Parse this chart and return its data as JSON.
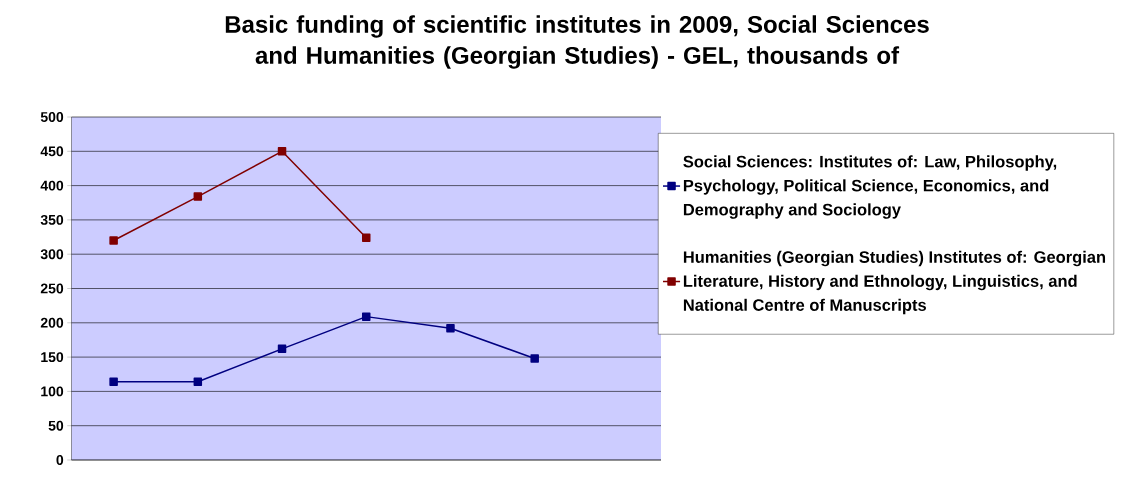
{
  "chart_data": {
    "type": "line",
    "title": "Basic funding of scientific institutes in 2009, Social Sciences and Humanities (Georgian Studies) - GEL, thousands of",
    "categories": [
      null,
      null,
      null,
      null,
      null,
      null,
      null
    ],
    "series": [
      {
        "name": "Social Sciences: Institutes of: Law, Philosophy, Psychology, Political Science, Economics, and Demography and Sociology",
        "color": "#000080",
        "values": [
          114,
          114,
          162,
          209,
          192,
          148,
          null
        ]
      },
      {
        "name": "Humanities (Georgian Studies) Institutes of: Georgian Literature, History and Ethnology, Linguistics, and National Centre of Manuscripts",
        "color": "#800000",
        "values": [
          320,
          384,
          450,
          324,
          null,
          null,
          null
        ]
      }
    ],
    "ylim": [
      0,
      500
    ],
    "yticks": [
      0,
      50,
      100,
      150,
      200,
      250,
      300,
      350,
      400,
      450,
      500
    ],
    "grid": "y",
    "legend": "right",
    "marker": "square",
    "line_style": "solid",
    "tick_labels": "y"
  }
}
